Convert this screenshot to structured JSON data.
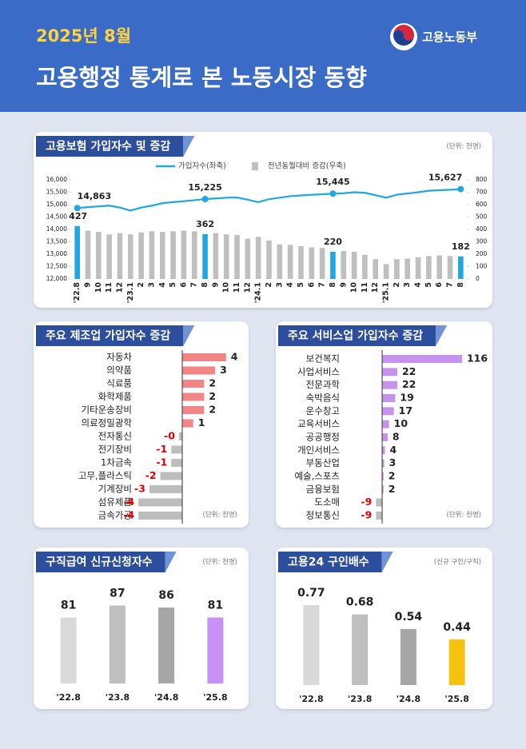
{
  "header": {
    "date": "2025년 8월",
    "title": "고용행정 통계로 본 노동시장 동향",
    "ministry": "고용노동부"
  },
  "chart_data": [
    {
      "type": "combo",
      "title": "고용보험 가입자수 및 증감",
      "unit": "(단위: 천명)",
      "categories": [
        "'22.8",
        "9",
        "10",
        "11",
        "12",
        "'23.1",
        "2",
        "3",
        "4",
        "5",
        "6",
        "7",
        "8",
        "9",
        "10",
        "11",
        "12",
        "'24.1",
        "2",
        "3",
        "4",
        "5",
        "6",
        "7",
        "8",
        "9",
        "10",
        "11",
        "12",
        "'25.1",
        "2",
        "3",
        "4",
        "5",
        "6",
        "7",
        "8"
      ],
      "series": [
        {
          "name": "가입자수(좌축)",
          "type": "line",
          "color": "#1ea7e1",
          "values": [
            14863,
            14900,
            14930,
            14960,
            14880,
            14760,
            14880,
            14960,
            15060,
            15100,
            15140,
            15180,
            15225,
            15250,
            15280,
            15290,
            15200,
            15100,
            15220,
            15280,
            15340,
            15370,
            15400,
            15420,
            15445,
            15460,
            15500,
            15480,
            15380,
            15280,
            15400,
            15450,
            15500,
            15560,
            15580,
            15600,
            15627
          ],
          "value_labels": [
            "14,863",
            null,
            null,
            null,
            null,
            null,
            null,
            null,
            null,
            null,
            null,
            null,
            "15,225",
            null,
            null,
            null,
            null,
            null,
            null,
            null,
            null,
            null,
            null,
            null,
            "15,445",
            null,
            null,
            null,
            null,
            null,
            null,
            null,
            null,
            null,
            null,
            null,
            "15,627"
          ]
        },
        {
          "name": "전년동월대비 증감(우축)",
          "type": "bar",
          "axis": "y2",
          "color": "#bfbfbf",
          "colors": [
            "#1ea7e1",
            "#bfbfbf",
            "#bfbfbf",
            "#bfbfbf",
            "#bfbfbf",
            "#bfbfbf",
            "#bfbfbf",
            "#bfbfbf",
            "#bfbfbf",
            "#bfbfbf",
            "#bfbfbf",
            "#bfbfbf",
            "#1ea7e1",
            "#bfbfbf",
            "#bfbfbf",
            "#bfbfbf",
            "#bfbfbf",
            "#bfbfbf",
            "#bfbfbf",
            "#bfbfbf",
            "#bfbfbf",
            "#bfbfbf",
            "#bfbfbf",
            "#bfbfbf",
            "#1ea7e1",
            "#bfbfbf",
            "#bfbfbf",
            "#bfbfbf",
            "#bfbfbf",
            "#bfbfbf",
            "#bfbfbf",
            "#bfbfbf",
            "#bfbfbf",
            "#bfbfbf",
            "#bfbfbf",
            "#bfbfbf",
            "#1ea7e1"
          ],
          "values": [
            427,
            390,
            380,
            360,
            370,
            360,
            375,
            385,
            380,
            385,
            390,
            385,
            362,
            370,
            360,
            355,
            325,
            340,
            310,
            280,
            275,
            265,
            255,
            250,
            220,
            225,
            220,
            195,
            160,
            120,
            160,
            165,
            175,
            185,
            190,
            185,
            182
          ],
          "value_labels": [
            "427",
            null,
            null,
            null,
            null,
            null,
            null,
            null,
            null,
            null,
            null,
            null,
            "362",
            null,
            null,
            null,
            null,
            null,
            null,
            null,
            null,
            null,
            null,
            null,
            "220",
            null,
            null,
            null,
            null,
            null,
            null,
            null,
            null,
            null,
            null,
            null,
            "182"
          ]
        }
      ],
      "ylim": [
        12000,
        16000
      ],
      "yticks": [
        {
          "value": 12000,
          "label": "12,000"
        },
        {
          "value": 12500,
          "label": "12,500"
        },
        {
          "value": 13000,
          "label": "13,000"
        },
        {
          "value": 13500,
          "label": "13,500"
        },
        {
          "value": 14000,
          "label": "14,000"
        },
        {
          "value": 14500,
          "label": "14,500"
        },
        {
          "value": 15000,
          "label": "15,000"
        },
        {
          "value": 15500,
          "label": "15,500"
        },
        {
          "value": 16000,
          "label": "16,000"
        }
      ],
      "y2lim": [
        0,
        800
      ],
      "y2ticks": [
        0,
        100,
        200,
        300,
        400,
        500,
        600,
        700,
        800
      ]
    },
    {
      "type": "hbar",
      "title": "주요 제조업 가입자수 증감",
      "unit": "(단위: 천명)",
      "categories": [
        "자동차",
        "의약품",
        "식료품",
        "화학제품",
        "기타운송장비",
        "의료정밀광학",
        "전자통신",
        "전기장비",
        "1차금속",
        "고무,플라스틱",
        "기계장비",
        "섬유제품",
        "금속가공"
      ],
      "values": [
        4,
        3,
        2,
        2,
        2,
        1,
        -0.3,
        -1,
        -1,
        -2,
        -3,
        -4,
        -4
      ],
      "value_labels": [
        "4",
        "3",
        "2",
        "2",
        "2",
        "1",
        "-0",
        "-1",
        "-1",
        "-2",
        "-3",
        "-4",
        "-4"
      ],
      "color": "#f28585",
      "negative_color": "#bdbdbd",
      "negative_label_color": "#e00000",
      "xlim": [
        -4.6,
        4.6
      ]
    },
    {
      "type": "hbar",
      "title": "주요 서비스업 가입자수 증감",
      "unit": "(단위: 천명)",
      "categories": [
        "보건복지",
        "사업서비스",
        "전문과학",
        "숙박음식",
        "운수창고",
        "교육서비스",
        "공공행정",
        "개인서비스",
        "부동산업",
        "예술,스포츠",
        "금융보험",
        "도소매",
        "정보통신"
      ],
      "values": [
        116,
        22,
        22,
        19,
        17,
        10,
        8,
        4,
        3,
        2,
        2,
        -9,
        -9
      ],
      "color": "#c792ee",
      "negative_color": "#bdbdbd",
      "negative_label_color": "#e00000",
      "xlim": [
        -12,
        120
      ]
    },
    {
      "type": "bar",
      "title": "구직급여 신규신청자수",
      "unit": "(단위: 천명)",
      "categories": [
        "'22.8",
        "'23.8",
        "'24.8",
        "'25.8"
      ],
      "values": [
        81,
        87,
        86,
        81
      ],
      "colors": [
        "#d9d9d9",
        "#bfbfbf",
        "#a6a6a6",
        "#c792f5"
      ],
      "ylim": [
        48,
        102
      ]
    },
    {
      "type": "bar",
      "title": "고용24 구인배수",
      "unit": "(신규 구인/구직)",
      "categories": [
        "'22.8",
        "'23.8",
        "'24.8",
        "'25.8"
      ],
      "values": [
        0.77,
        0.68,
        0.54,
        0.44
      ],
      "colors": [
        "#d9d9d9",
        "#bfbfbf",
        "#a6a6a6",
        "#f5c211"
      ],
      "ylim": [
        0,
        0.9
      ]
    }
  ]
}
